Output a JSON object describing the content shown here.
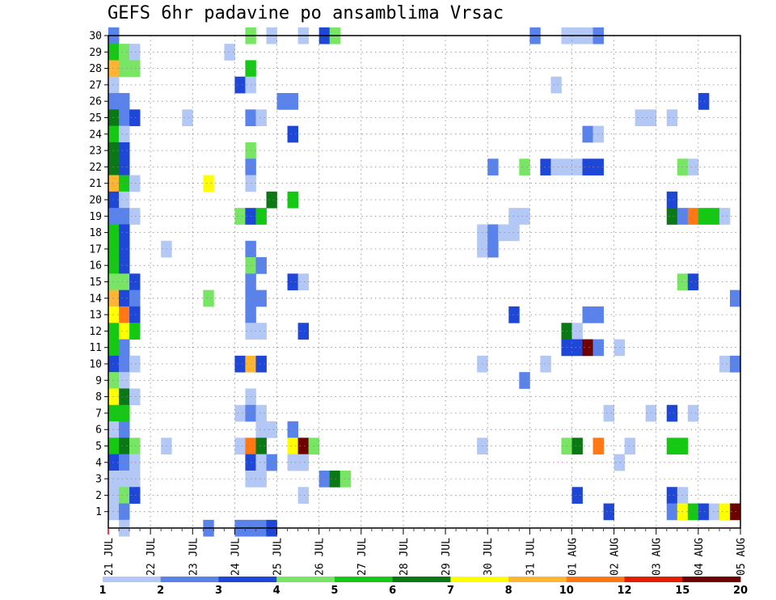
{
  "chart_data": {
    "type": "heatmap",
    "title": "GEFS 6hr padavine po ansamblima Vrsac",
    "xlabel": "",
    "ylabel": "",
    "x_tick_labels": [
      "21 JUL",
      "22 JUL",
      "23 JUL",
      "24 JUL",
      "25 JUL",
      "26 JUL",
      "27 JUL",
      "28 JUL",
      "29 JUL",
      "30 JUL",
      "31 JUL",
      "01 AUG",
      "02 AUG",
      "03 AUG",
      "04 AUG",
      "05 AUG"
    ],
    "y_tick_labels": [
      "1",
      "2",
      "3",
      "4",
      "5",
      "6",
      "7",
      "8",
      "9",
      "10",
      "11",
      "12",
      "13",
      "14",
      "15",
      "16",
      "17",
      "18",
      "19",
      "20",
      "21",
      "22",
      "23",
      "24",
      "25",
      "26",
      "27",
      "28",
      "29",
      "30"
    ],
    "ylim": [
      0,
      30
    ],
    "x_steps_per_day": 4,
    "x_step_count": 60,
    "grid": true,
    "colorbar": {
      "boundaries": [
        "1",
        "2",
        "3",
        "4",
        "5",
        "6",
        "7",
        "8",
        "10",
        "12",
        "15",
        "20"
      ],
      "colors": [
        "#b4c8f5",
        "#5a82eb",
        "#1e46d7",
        "#78e664",
        "#14c814",
        "#0a7814",
        "#ffff00",
        "#ffb432",
        "#ff7814",
        "#e11e00",
        "#6e0000"
      ]
    },
    "levels": [
      1,
      2,
      3,
      4,
      5,
      6,
      7,
      8,
      10,
      12,
      15,
      20
    ],
    "cells": [
      [
        30,
        0,
        2
      ],
      [
        30,
        13,
        4
      ],
      [
        30,
        15,
        1
      ],
      [
        30,
        18,
        1
      ],
      [
        30,
        20,
        3
      ],
      [
        30,
        21,
        4
      ],
      [
        30,
        40,
        2
      ],
      [
        30,
        43,
        1
      ],
      [
        30,
        44,
        1
      ],
      [
        30,
        45,
        1
      ],
      [
        30,
        46,
        2
      ],
      [
        29,
        0,
        5
      ],
      [
        29,
        1,
        4
      ],
      [
        29,
        2,
        1
      ],
      [
        29,
        11,
        1
      ],
      [
        28,
        0,
        8
      ],
      [
        28,
        1,
        4
      ],
      [
        28,
        2,
        4
      ],
      [
        28,
        13,
        5
      ],
      [
        27,
        0,
        1
      ],
      [
        27,
        12,
        3
      ],
      [
        27,
        13,
        1
      ],
      [
        27,
        42,
        1
      ],
      [
        26,
        0,
        2
      ],
      [
        26,
        1,
        2
      ],
      [
        26,
        16,
        2
      ],
      [
        26,
        17,
        2
      ],
      [
        26,
        56,
        3
      ],
      [
        25,
        0,
        6
      ],
      [
        25,
        1,
        2
      ],
      [
        25,
        2,
        3
      ],
      [
        25,
        7,
        1
      ],
      [
        25,
        13,
        2
      ],
      [
        25,
        14,
        1
      ],
      [
        25,
        50,
        1
      ],
      [
        25,
        51,
        1
      ],
      [
        25,
        53,
        1
      ],
      [
        24,
        0,
        5
      ],
      [
        24,
        1,
        1
      ],
      [
        24,
        17,
        3
      ],
      [
        24,
        45,
        2
      ],
      [
        24,
        46,
        1
      ],
      [
        23,
        0,
        6
      ],
      [
        23,
        1,
        3
      ],
      [
        23,
        13,
        4
      ],
      [
        22,
        0,
        6
      ],
      [
        22,
        1,
        3
      ],
      [
        22,
        13,
        2
      ],
      [
        22,
        36,
        2
      ],
      [
        22,
        39,
        4
      ],
      [
        22,
        41,
        3
      ],
      [
        22,
        42,
        1
      ],
      [
        22,
        43,
        1
      ],
      [
        22,
        44,
        1
      ],
      [
        22,
        45,
        3
      ],
      [
        22,
        46,
        3
      ],
      [
        22,
        54,
        4
      ],
      [
        22,
        55,
        1
      ],
      [
        21,
        0,
        8
      ],
      [
        21,
        1,
        5
      ],
      [
        21,
        2,
        1
      ],
      [
        21,
        9,
        7
      ],
      [
        21,
        13,
        1
      ],
      [
        20,
        0,
        3
      ],
      [
        20,
        1,
        1
      ],
      [
        20,
        15,
        6
      ],
      [
        20,
        17,
        5
      ],
      [
        20,
        53,
        3
      ],
      [
        19,
        0,
        2
      ],
      [
        19,
        1,
        2
      ],
      [
        19,
        2,
        1
      ],
      [
        19,
        12,
        4
      ],
      [
        19,
        13,
        3
      ],
      [
        19,
        14,
        5
      ],
      [
        19,
        38,
        1
      ],
      [
        19,
        39,
        1
      ],
      [
        19,
        53,
        6
      ],
      [
        19,
        54,
        2
      ],
      [
        19,
        55,
        9
      ],
      [
        19,
        56,
        5
      ],
      [
        19,
        57,
        5
      ],
      [
        19,
        58,
        1
      ],
      [
        18,
        0,
        5
      ],
      [
        18,
        1,
        3
      ],
      [
        18,
        35,
        1
      ],
      [
        18,
        36,
        2
      ],
      [
        18,
        37,
        1
      ],
      [
        18,
        38,
        1
      ],
      [
        17,
        0,
        5
      ],
      [
        17,
        1,
        3
      ],
      [
        17,
        5,
        1
      ],
      [
        17,
        13,
        2
      ],
      [
        17,
        35,
        1
      ],
      [
        17,
        36,
        2
      ],
      [
        16,
        0,
        5
      ],
      [
        16,
        1,
        3
      ],
      [
        16,
        13,
        4
      ],
      [
        16,
        14,
        2
      ],
      [
        15,
        0,
        4
      ],
      [
        15,
        1,
        4
      ],
      [
        15,
        2,
        3
      ],
      [
        15,
        13,
        2
      ],
      [
        15,
        17,
        3
      ],
      [
        15,
        18,
        1
      ],
      [
        15,
        54,
        4
      ],
      [
        15,
        55,
        3
      ],
      [
        14,
        0,
        8
      ],
      [
        14,
        1,
        3
      ],
      [
        14,
        2,
        2
      ],
      [
        14,
        9,
        4
      ],
      [
        14,
        13,
        2
      ],
      [
        14,
        14,
        2
      ],
      [
        14,
        59,
        2
      ],
      [
        13,
        0,
        7
      ],
      [
        13,
        1,
        9
      ],
      [
        13,
        2,
        3
      ],
      [
        13,
        13,
        2
      ],
      [
        13,
        38,
        3
      ],
      [
        13,
        45,
        2
      ],
      [
        13,
        46,
        2
      ],
      [
        12,
        0,
        5
      ],
      [
        12,
        1,
        7
      ],
      [
        12,
        2,
        5
      ],
      [
        12,
        13,
        1
      ],
      [
        12,
        14,
        1
      ],
      [
        12,
        18,
        3
      ],
      [
        12,
        43,
        6
      ],
      [
        12,
        44,
        1
      ],
      [
        11,
        0,
        5
      ],
      [
        11,
        1,
        2
      ],
      [
        11,
        43,
        3
      ],
      [
        11,
        44,
        3
      ],
      [
        11,
        45,
        11
      ],
      [
        11,
        46,
        2
      ],
      [
        11,
        48,
        1
      ],
      [
        10,
        0,
        3
      ],
      [
        10,
        1,
        2
      ],
      [
        10,
        2,
        1
      ],
      [
        10,
        12,
        3
      ],
      [
        10,
        13,
        8
      ],
      [
        10,
        14,
        3
      ],
      [
        10,
        35,
        1
      ],
      [
        10,
        41,
        1
      ],
      [
        10,
        58,
        1
      ],
      [
        10,
        59,
        2
      ],
      [
        9,
        0,
        4
      ],
      [
        9,
        1,
        1
      ],
      [
        9,
        39,
        2
      ],
      [
        8,
        0,
        7
      ],
      [
        8,
        1,
        6
      ],
      [
        8,
        2,
        1
      ],
      [
        8,
        13,
        1
      ],
      [
        7,
        0,
        5
      ],
      [
        7,
        1,
        5
      ],
      [
        7,
        12,
        1
      ],
      [
        7,
        13,
        2
      ],
      [
        7,
        14,
        1
      ],
      [
        7,
        47,
        1
      ],
      [
        7,
        51,
        1
      ],
      [
        7,
        53,
        3
      ],
      [
        7,
        55,
        1
      ],
      [
        6,
        0,
        1
      ],
      [
        6,
        1,
        2
      ],
      [
        6,
        14,
        1
      ],
      [
        6,
        15,
        1
      ],
      [
        6,
        17,
        2
      ],
      [
        5,
        0,
        5
      ],
      [
        5,
        1,
        6
      ],
      [
        5,
        2,
        4
      ],
      [
        5,
        5,
        1
      ],
      [
        5,
        12,
        1
      ],
      [
        5,
        13,
        9
      ],
      [
        5,
        14,
        6
      ],
      [
        5,
        17,
        7
      ],
      [
        5,
        18,
        11
      ],
      [
        5,
        19,
        4
      ],
      [
        5,
        35,
        1
      ],
      [
        5,
        43,
        4
      ],
      [
        5,
        44,
        6
      ],
      [
        5,
        46,
        9
      ],
      [
        5,
        49,
        1
      ],
      [
        5,
        53,
        5
      ],
      [
        5,
        54,
        5
      ],
      [
        4,
        0,
        3
      ],
      [
        4,
        1,
        2
      ],
      [
        4,
        2,
        1
      ],
      [
        4,
        13,
        3
      ],
      [
        4,
        14,
        1
      ],
      [
        4,
        15,
        2
      ],
      [
        4,
        17,
        1
      ],
      [
        4,
        18,
        1
      ],
      [
        4,
        48,
        1
      ],
      [
        3,
        0,
        1
      ],
      [
        3,
        1,
        1
      ],
      [
        3,
        2,
        1
      ],
      [
        3,
        13,
        1
      ],
      [
        3,
        14,
        1
      ],
      [
        3,
        20,
        2
      ],
      [
        3,
        21,
        6
      ],
      [
        3,
        22,
        4
      ],
      [
        2,
        0,
        1
      ],
      [
        2,
        1,
        4
      ],
      [
        2,
        2,
        3
      ],
      [
        2,
        18,
        1
      ],
      [
        2,
        44,
        3
      ],
      [
        2,
        53,
        3
      ],
      [
        2,
        54,
        1
      ],
      [
        1,
        0,
        1
      ],
      [
        1,
        1,
        2
      ],
      [
        1,
        47,
        3
      ],
      [
        1,
        53,
        2
      ],
      [
        1,
        54,
        7
      ],
      [
        1,
        55,
        5
      ],
      [
        1,
        56,
        3
      ],
      [
        1,
        57,
        1
      ],
      [
        1,
        58,
        7
      ],
      [
        1,
        59,
        11
      ],
      [
        0,
        1,
        1
      ],
      [
        0,
        9,
        2
      ],
      [
        0,
        12,
        2
      ],
      [
        0,
        13,
        2
      ],
      [
        0,
        14,
        2
      ],
      [
        0,
        15,
        3
      ]
    ]
  }
}
